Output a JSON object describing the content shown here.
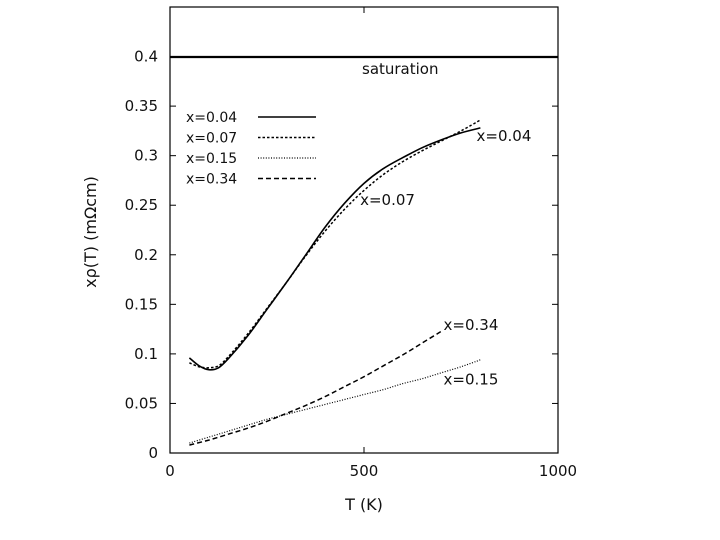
{
  "chart_data": {
    "type": "line",
    "title": "",
    "xlabel": "T (K)",
    "ylabel": "xρ(T) (mΩcm)",
    "xlim": [
      0,
      1000
    ],
    "ylim": [
      0,
      0.45
    ],
    "xticks": [
      0,
      500,
      1000
    ],
    "xtick_labels": [
      "0",
      "500",
      "1000"
    ],
    "yticks": [
      0,
      0.05,
      0.1,
      0.15,
      0.2,
      0.25,
      0.3,
      0.35,
      0.4
    ],
    "ytick_labels": [
      "0",
      "0.05",
      "0.1",
      "0.15",
      "0.2",
      "0.25",
      "0.3",
      "0.35",
      "0.4"
    ],
    "grid": false,
    "legend_position": "top-left",
    "saturation": {
      "y": 0.4,
      "label": "saturation"
    },
    "series": [
      {
        "name": "x=0.04",
        "dash": "solid",
        "x": [
          50,
          75,
          100,
          125,
          150,
          200,
          250,
          300,
          350,
          400,
          450,
          500,
          550,
          600,
          650,
          700,
          750,
          800
        ],
        "y": [
          0.096,
          0.088,
          0.084,
          0.086,
          0.095,
          0.118,
          0.145,
          0.172,
          0.2,
          0.228,
          0.252,
          0.272,
          0.287,
          0.298,
          0.308,
          0.316,
          0.323,
          0.328
        ]
      },
      {
        "name": "x=0.07",
        "dash": "dotted",
        "x": [
          50,
          75,
          100,
          125,
          150,
          200,
          250,
          300,
          350,
          400,
          450,
          500,
          550,
          600,
          650,
          700,
          750,
          800
        ],
        "y": [
          0.091,
          0.087,
          0.086,
          0.088,
          0.097,
          0.12,
          0.146,
          0.172,
          0.199,
          0.224,
          0.246,
          0.265,
          0.281,
          0.294,
          0.305,
          0.315,
          0.325,
          0.336
        ]
      },
      {
        "name": "x=0.15",
        "dash": "fine-dotted",
        "x": [
          50,
          100,
          150,
          200,
          250,
          300,
          350,
          400,
          450,
          500,
          550,
          600,
          650,
          700,
          750,
          800
        ],
        "y": [
          0.01,
          0.016,
          0.022,
          0.028,
          0.034,
          0.039,
          0.044,
          0.049,
          0.054,
          0.059,
          0.064,
          0.07,
          0.075,
          0.081,
          0.087,
          0.094
        ]
      },
      {
        "name": "x=0.34",
        "dash": "dashed",
        "x": [
          50,
          100,
          150,
          200,
          250,
          300,
          350,
          400,
          450,
          500,
          550,
          600,
          650,
          700
        ],
        "y": [
          0.008,
          0.013,
          0.019,
          0.025,
          0.032,
          0.04,
          0.048,
          0.057,
          0.067,
          0.077,
          0.088,
          0.099,
          0.111,
          0.123
        ]
      }
    ],
    "annotations": [
      {
        "text": "x=0.04",
        "x": 790,
        "y": 0.315
      },
      {
        "text": "x=0.07",
        "x": 490,
        "y": 0.25
      },
      {
        "text": "x=0.34",
        "x": 705,
        "y": 0.124
      },
      {
        "text": "x=0.15",
        "x": 705,
        "y": 0.069
      }
    ]
  }
}
